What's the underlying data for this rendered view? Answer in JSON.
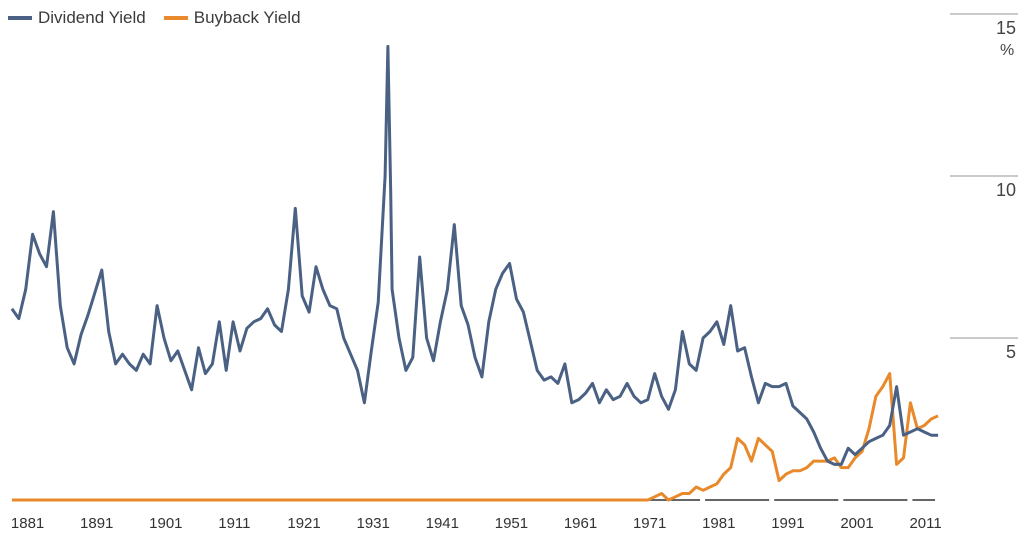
{
  "chart_data": {
    "type": "line",
    "title": "",
    "xlabel": "",
    "ylabel": "",
    "unit_label": "%",
    "xlim": [
      1880,
      2016
    ],
    "ylim": [
      0,
      15
    ],
    "x_ticks": [
      "1881",
      "1891",
      "1901",
      "1911",
      "1921",
      "1931",
      "1941",
      "1951",
      "1961",
      "1971",
      "1981",
      "1991",
      "2001",
      "2011"
    ],
    "y_ticks": [
      "5",
      "10",
      "15"
    ],
    "grid": "horizontal lines at right side",
    "legend_position": "top-left",
    "series": [
      {
        "name": "Dividend Yield",
        "color": "#4a6184",
        "points": [
          [
            1881,
            5.9
          ],
          [
            1882,
            5.6
          ],
          [
            1883,
            6.5
          ],
          [
            1884,
            8.2
          ],
          [
            1885,
            7.6
          ],
          [
            1886,
            7.2
          ],
          [
            1887,
            8.9
          ],
          [
            1888,
            6.0
          ],
          [
            1889,
            4.7
          ],
          [
            1890,
            4.2
          ],
          [
            1891,
            5.1
          ],
          [
            1892,
            5.7
          ],
          [
            1893,
            6.4
          ],
          [
            1894,
            7.1
          ],
          [
            1895,
            5.2
          ],
          [
            1896,
            4.2
          ],
          [
            1897,
            4.5
          ],
          [
            1898,
            4.2
          ],
          [
            1899,
            4.0
          ],
          [
            1900,
            4.5
          ],
          [
            1901,
            4.2
          ],
          [
            1902,
            6.0
          ],
          [
            1903,
            5.0
          ],
          [
            1904,
            4.3
          ],
          [
            1905,
            4.6
          ],
          [
            1906,
            4.0
          ],
          [
            1907,
            3.4
          ],
          [
            1908,
            4.7
          ],
          [
            1909,
            3.9
          ],
          [
            1910,
            4.2
          ],
          [
            1911,
            5.5
          ],
          [
            1912,
            4.0
          ],
          [
            1913,
            5.5
          ],
          [
            1914,
            4.6
          ],
          [
            1915,
            5.3
          ],
          [
            1916,
            5.5
          ],
          [
            1917,
            5.6
          ],
          [
            1918,
            5.9
          ],
          [
            1919,
            5.4
          ],
          [
            1920,
            5.2
          ],
          [
            1921,
            6.5
          ],
          [
            1922,
            9.0
          ],
          [
            1923,
            6.3
          ],
          [
            1924,
            5.8
          ],
          [
            1925,
            7.2
          ],
          [
            1926,
            6.5
          ],
          [
            1927,
            6.0
          ],
          [
            1928,
            5.9
          ],
          [
            1929,
            5.0
          ],
          [
            1930,
            4.5
          ],
          [
            1931,
            4.0
          ],
          [
            1932,
            3.0
          ],
          [
            1933,
            4.6
          ],
          [
            1934,
            6.1
          ],
          [
            1935,
            10.0
          ],
          [
            1935.4,
            14.0
          ],
          [
            1935.8,
            9.5
          ],
          [
            1936,
            6.5
          ],
          [
            1937,
            5.0
          ],
          [
            1938,
            4.0
          ],
          [
            1939,
            4.4
          ],
          [
            1940,
            7.5
          ],
          [
            1941,
            5.0
          ],
          [
            1942,
            4.3
          ],
          [
            1943,
            5.5
          ],
          [
            1944,
            6.5
          ],
          [
            1945,
            8.5
          ],
          [
            1946,
            6.0
          ],
          [
            1947,
            5.4
          ],
          [
            1948,
            4.4
          ],
          [
            1949,
            3.8
          ],
          [
            1950,
            5.5
          ],
          [
            1951,
            6.5
          ],
          [
            1952,
            7.0
          ],
          [
            1953,
            7.3
          ],
          [
            1954,
            6.2
          ],
          [
            1955,
            5.8
          ],
          [
            1956,
            4.9
          ],
          [
            1957,
            4.0
          ],
          [
            1958,
            3.7
          ],
          [
            1959,
            3.8
          ],
          [
            1960,
            3.6
          ],
          [
            1961,
            4.2
          ],
          [
            1962,
            3.0
          ],
          [
            1963,
            3.1
          ],
          [
            1964,
            3.3
          ],
          [
            1965,
            3.6
          ],
          [
            1966,
            3.0
          ],
          [
            1967,
            3.4
          ],
          [
            1968,
            3.1
          ],
          [
            1969,
            3.2
          ],
          [
            1970,
            3.6
          ],
          [
            1971,
            3.2
          ],
          [
            1972,
            3.0
          ],
          [
            1973,
            3.1
          ],
          [
            1974,
            3.9
          ],
          [
            1975,
            3.2
          ],
          [
            1976,
            2.8
          ],
          [
            1977,
            3.4
          ],
          [
            1978,
            5.2
          ],
          [
            1979,
            4.2
          ],
          [
            1980,
            4.0
          ],
          [
            1981,
            5.0
          ],
          [
            1982,
            5.2
          ],
          [
            1983,
            5.5
          ],
          [
            1984,
            4.8
          ],
          [
            1985,
            6.0
          ],
          [
            1986,
            4.6
          ],
          [
            1987,
            4.7
          ],
          [
            1988,
            3.8
          ],
          [
            1989,
            3.0
          ],
          [
            1990,
            3.6
          ],
          [
            1991,
            3.5
          ],
          [
            1992,
            3.5
          ],
          [
            1993,
            3.6
          ],
          [
            1994,
            2.9
          ],
          [
            1995,
            2.7
          ],
          [
            1996,
            2.5
          ],
          [
            1997,
            2.1
          ],
          [
            1998,
            1.6
          ],
          [
            1999,
            1.2
          ],
          [
            2000,
            1.1
          ],
          [
            2001,
            1.1
          ],
          [
            2002,
            1.6
          ],
          [
            2003,
            1.4
          ],
          [
            2004,
            1.6
          ],
          [
            2005,
            1.8
          ],
          [
            2006,
            1.9
          ],
          [
            2007,
            2.0
          ],
          [
            2008,
            2.3
          ],
          [
            2009,
            3.5
          ],
          [
            2010,
            2.0
          ],
          [
            2011,
            2.1
          ],
          [
            2012,
            2.2
          ],
          [
            2013,
            2.1
          ],
          [
            2014,
            2.0
          ],
          [
            2015,
            2.0
          ]
        ]
      },
      {
        "name": "Buyback Yield",
        "color": "#e8892b",
        "points": [
          [
            1881,
            0.0
          ],
          [
            1973,
            0.0
          ],
          [
            1974,
            0.1
          ],
          [
            1975,
            0.2
          ],
          [
            1976,
            0.0
          ],
          [
            1977,
            0.1
          ],
          [
            1978,
            0.2
          ],
          [
            1979,
            0.2
          ],
          [
            1980,
            0.4
          ],
          [
            1981,
            0.3
          ],
          [
            1982,
            0.4
          ],
          [
            1983,
            0.5
          ],
          [
            1984,
            0.8
          ],
          [
            1985,
            1.0
          ],
          [
            1986,
            1.9
          ],
          [
            1987,
            1.7
          ],
          [
            1988,
            1.2
          ],
          [
            1989,
            1.9
          ],
          [
            1990,
            1.7
          ],
          [
            1991,
            1.5
          ],
          [
            1992,
            0.6
          ],
          [
            1993,
            0.8
          ],
          [
            1994,
            0.9
          ],
          [
            1995,
            0.9
          ],
          [
            1996,
            1.0
          ],
          [
            1997,
            1.2
          ],
          [
            1998,
            1.2
          ],
          [
            1999,
            1.2
          ],
          [
            2000,
            1.3
          ],
          [
            2001,
            1.0
          ],
          [
            2002,
            1.0
          ],
          [
            2003,
            1.3
          ],
          [
            2004,
            1.5
          ],
          [
            2005,
            2.2
          ],
          [
            2006,
            3.2
          ],
          [
            2007,
            3.5
          ],
          [
            2008,
            3.9
          ],
          [
            2009,
            1.1
          ],
          [
            2010,
            1.3
          ],
          [
            2011,
            3.0
          ],
          [
            2012,
            2.2
          ],
          [
            2013,
            2.3
          ],
          [
            2014,
            2.5
          ],
          [
            2015,
            2.6
          ]
        ]
      }
    ]
  }
}
